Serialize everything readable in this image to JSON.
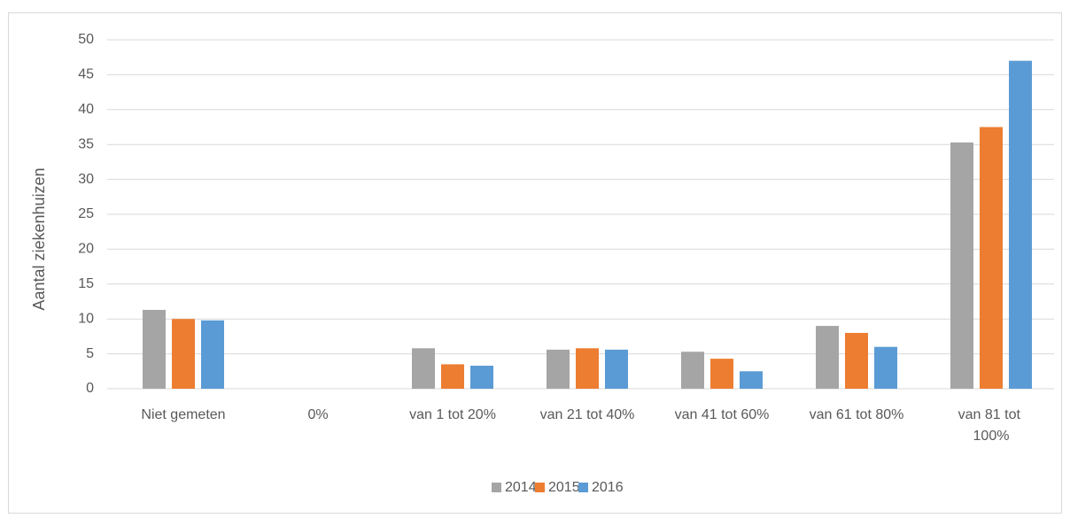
{
  "chart_data": {
    "type": "bar",
    "y_label": "Aantal ziekenhuizen",
    "categories": [
      "Niet gemeten",
      "0%",
      "van 1 tot 20%",
      "van 21 tot 40%",
      "van 41 tot 60%",
      "van 61 tot 80%",
      "van 81 tot 100%"
    ],
    "series": [
      {
        "name": "2014",
        "color": "#a5a5a5",
        "values": [
          11.3,
          0,
          5.8,
          5.6,
          5.3,
          9,
          35.3
        ]
      },
      {
        "name": "2015",
        "color": "#ed7d31",
        "values": [
          10,
          0,
          3.5,
          5.8,
          4.3,
          8,
          37.5
        ]
      },
      {
        "name": "2016",
        "color": "#5b9bd5",
        "values": [
          9.8,
          0,
          3.3,
          5.6,
          2.5,
          6,
          47
        ]
      }
    ],
    "ylim": [
      0,
      50
    ],
    "yticks": [
      0,
      5,
      10,
      15,
      20,
      25,
      30,
      35,
      40,
      45,
      50
    ],
    "grid": true,
    "legend": "bottom"
  }
}
